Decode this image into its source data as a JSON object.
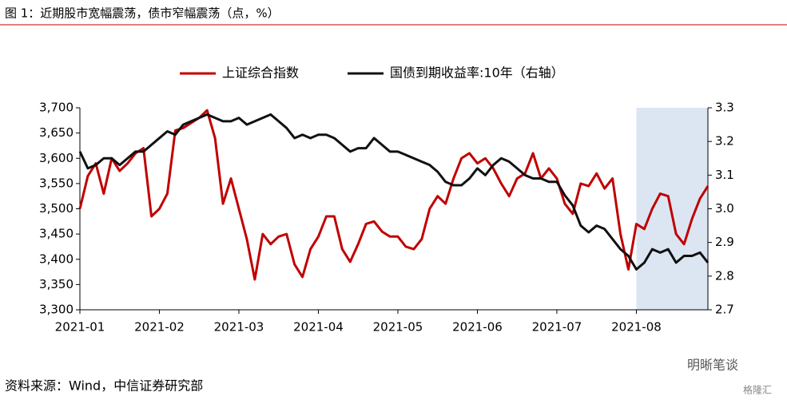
{
  "chart_data": {
    "type": "line",
    "title": "图 1：近期股市宽幅震荡，债市窄幅震荡（点，%）",
    "source": "资料来源：Wind，中信证券研究部",
    "watermark": "明晰笔谈",
    "watermark2": "格隆汇",
    "shade_color": "#dce6f2",
    "categories": [
      "2021-01",
      null,
      null,
      null,
      null,
      null,
      null,
      null,
      null,
      null,
      "2021-02",
      null,
      null,
      null,
      null,
      null,
      null,
      null,
      null,
      null,
      "2021-03",
      null,
      null,
      null,
      null,
      null,
      null,
      null,
      null,
      null,
      "2021-04",
      null,
      null,
      null,
      null,
      null,
      null,
      null,
      null,
      null,
      "2021-05",
      null,
      null,
      null,
      null,
      null,
      null,
      null,
      null,
      null,
      "2021-06",
      null,
      null,
      null,
      null,
      null,
      null,
      null,
      null,
      null,
      "2021-07",
      null,
      null,
      null,
      null,
      null,
      null,
      null,
      null,
      null,
      "2021-08",
      null,
      null,
      null,
      null,
      null,
      null,
      null,
      null,
      null
    ],
    "series": [
      {
        "name": "上证综合指数",
        "color": "#c00000",
        "values": [
          3500,
          3565,
          3590,
          3530,
          3600,
          3575,
          3590,
          3610,
          3620,
          3485,
          3500,
          3530,
          3655,
          3660,
          3670,
          3680,
          3695,
          3640,
          3510,
          3560,
          3500,
          3440,
          3360,
          3450,
          3430,
          3445,
          3450,
          3390,
          3365,
          3420,
          3445,
          3485,
          3485,
          3420,
          3395,
          3430,
          3470,
          3475,
          3455,
          3445,
          3445,
          3425,
          3420,
          3440,
          3500,
          3525,
          3510,
          3560,
          3600,
          3610,
          3590,
          3600,
          3580,
          3550,
          3525,
          3560,
          3570,
          3610,
          3560,
          3580,
          3560,
          3510,
          3490,
          3550,
          3545,
          3570,
          3540,
          3560,
          3450,
          3380,
          3470,
          3460,
          3500,
          3530,
          3525,
          3450,
          3430,
          3480,
          3520,
          3545
        ]
      },
      {
        "name": "国债到期收益率:10年（右轴）",
        "color": "#111111",
        "axis": "y2",
        "values": [
          3.17,
          3.12,
          3.13,
          3.15,
          3.15,
          3.13,
          3.15,
          3.17,
          3.17,
          3.19,
          3.21,
          3.23,
          3.22,
          3.25,
          3.26,
          3.27,
          3.28,
          3.27,
          3.26,
          3.26,
          3.27,
          3.25,
          3.26,
          3.27,
          3.28,
          3.26,
          3.24,
          3.21,
          3.22,
          3.21,
          3.22,
          3.22,
          3.21,
          3.19,
          3.17,
          3.18,
          3.18,
          3.21,
          3.19,
          3.17,
          3.17,
          3.16,
          3.15,
          3.14,
          3.13,
          3.11,
          3.08,
          3.07,
          3.07,
          3.09,
          3.12,
          3.1,
          3.13,
          3.15,
          3.14,
          3.12,
          3.1,
          3.09,
          3.09,
          3.08,
          3.08,
          3.04,
          3.01,
          2.95,
          2.93,
          2.95,
          2.94,
          2.91,
          2.88,
          2.86,
          2.82,
          2.84,
          2.88,
          2.87,
          2.88,
          2.84,
          2.86,
          2.86,
          2.87,
          2.84
        ]
      }
    ],
    "ylim": [
      3300,
      3700
    ],
    "yticks": [
      {
        "value": 3300,
        "label": "3,300"
      },
      {
        "value": 3350,
        "label": "3,350"
      },
      {
        "value": 3400,
        "label": "3,400"
      },
      {
        "value": 3450,
        "label": "3,450"
      },
      {
        "value": 3500,
        "label": "3,500"
      },
      {
        "value": 3550,
        "label": "3,550"
      },
      {
        "value": 3600,
        "label": "3,600"
      },
      {
        "value": 3650,
        "label": "3,650"
      },
      {
        "value": 3700,
        "label": "3,700"
      }
    ],
    "y2lim": [
      2.7,
      3.3
    ],
    "y2ticks": [
      2.7,
      2.8,
      2.9,
      {
        "value": 3,
        "label": "3.0"
      },
      3.1,
      3.2,
      3.3
    ],
    "grid": false
  }
}
